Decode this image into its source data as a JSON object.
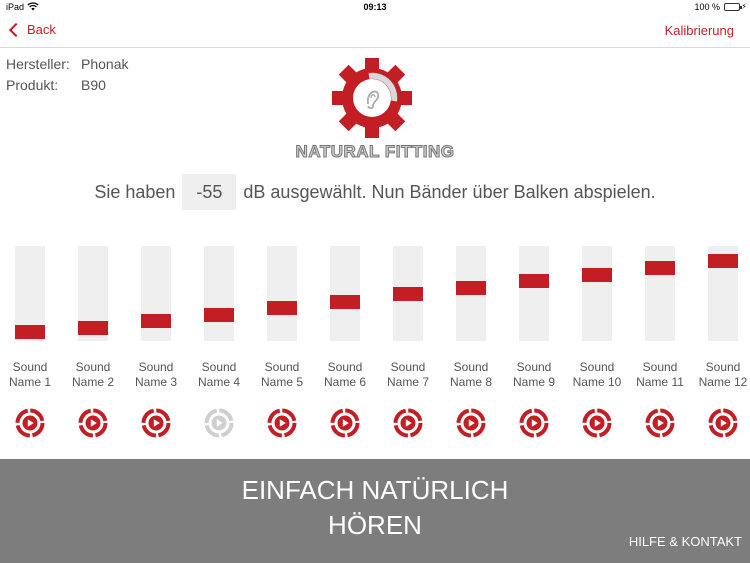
{
  "statusbar": {
    "device": "iPad",
    "time": "09:13",
    "battery": "100 %"
  },
  "nav": {
    "back_label": "Back",
    "right_label": "Kalibrierung"
  },
  "info": {
    "manufacturer_label": "Hersteller:",
    "manufacturer_value": "Phonak",
    "product_label": "Produkt:",
    "product_value": "B90"
  },
  "logo": {
    "text": "NATURAL FITTING",
    "icon": "gear-ear-logo",
    "color": "#c41e25"
  },
  "instruction": {
    "before": "Sie haben",
    "db_value": "-55",
    "after": "dB ausgewählt. Nun Bänder über Balken abspielen."
  },
  "bands": [
    {
      "label_line1": "Sound",
      "label_line2": "Name 1",
      "level": 0.09,
      "active": true
    },
    {
      "label_line1": "Sound",
      "label_line2": "Name 2",
      "level": 0.14,
      "active": true
    },
    {
      "label_line1": "Sound",
      "label_line2": "Name 3",
      "level": 0.21,
      "active": true
    },
    {
      "label_line1": "Sound",
      "label_line2": "Name 4",
      "level": 0.27,
      "active": false
    },
    {
      "label_line1": "Sound",
      "label_line2": "Name 5",
      "level": 0.35,
      "active": true
    },
    {
      "label_line1": "Sound",
      "label_line2": "Name 6",
      "level": 0.41,
      "active": true
    },
    {
      "label_line1": "Sound",
      "label_line2": "Name 7",
      "level": 0.49,
      "active": true
    },
    {
      "label_line1": "Sound",
      "label_line2": "Name 8",
      "level": 0.56,
      "active": true
    },
    {
      "label_line1": "Sound",
      "label_line2": "Name 9",
      "level": 0.63,
      "active": true
    },
    {
      "label_line1": "Sound",
      "label_line2": "Name 10",
      "level": 0.7,
      "active": true
    },
    {
      "label_line1": "Sound",
      "label_line2": "Name 11",
      "level": 0.77,
      "active": true
    },
    {
      "label_line1": "Sound",
      "label_line2": "Name 12",
      "level": 0.84,
      "active": true
    }
  ],
  "colors": {
    "accent": "#c41e25",
    "disabled": "#cfcfcf",
    "footer_bg": "#7d7d7d"
  },
  "footer": {
    "slogan_line1": "EINFACH NATÜRLICH",
    "slogan_line2": "HÖREN",
    "help_label": "HILFE & KONTAKT"
  }
}
